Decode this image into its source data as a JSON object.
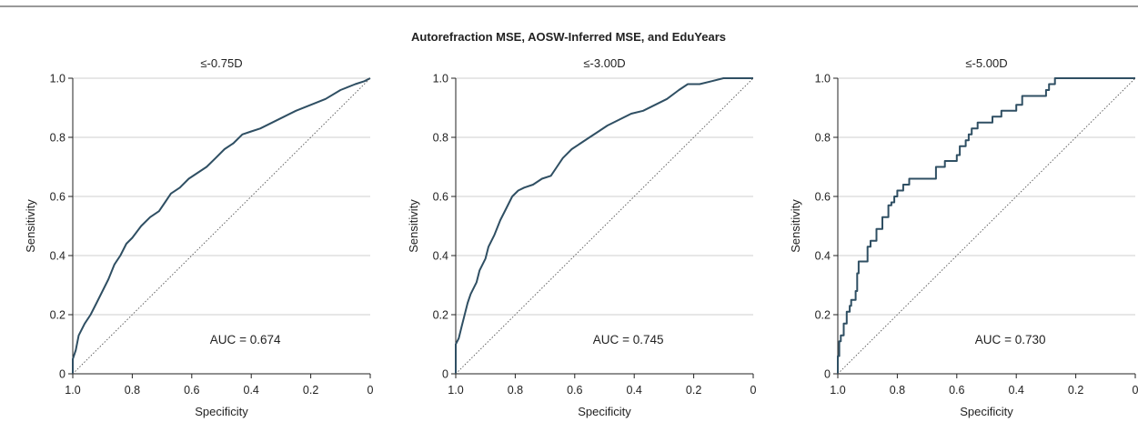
{
  "figure": {
    "title": "Autorefraction MSE, AOSW-Inferred MSE, and EduYears"
  },
  "colors": {
    "curve": "#2f4f63",
    "reference": "#555555",
    "grid": "#cfcfcf",
    "axis": "#222222",
    "top_rule": "#333333"
  },
  "chart_data": [
    {
      "type": "line",
      "subtitle": "≤-0.75D",
      "xlabel": "Specificity",
      "ylabel": "Sensitivity",
      "xlim": [
        1.0,
        0
      ],
      "ylim": [
        0,
        1.0
      ],
      "x_reversed": true,
      "xticks": [
        1.0,
        0.8,
        0.6,
        0.4,
        0.2,
        0
      ],
      "xtick_labels": [
        "1.0",
        "0.8",
        "0.6",
        "0.4",
        "0.2",
        "0"
      ],
      "yticks": [
        0,
        0.2,
        0.4,
        0.6,
        0.8,
        1.0
      ],
      "ytick_labels": [
        "0",
        "0.2",
        "0.4",
        "0.6",
        "0.8",
        "1.0"
      ],
      "grid": "horizontal",
      "annotation": {
        "label": "AUC",
        "value": "0.674"
      },
      "series": [
        {
          "step": false,
          "points": [
            [
              1.0,
              0
            ],
            [
              1.0,
              0.05
            ],
            [
              0.99,
              0.08
            ],
            [
              0.98,
              0.13
            ],
            [
              0.96,
              0.17
            ],
            [
              0.94,
              0.2
            ],
            [
              0.92,
              0.24
            ],
            [
              0.9,
              0.28
            ],
            [
              0.88,
              0.32
            ],
            [
              0.86,
              0.37
            ],
            [
              0.84,
              0.4
            ],
            [
              0.82,
              0.44
            ],
            [
              0.8,
              0.46
            ],
            [
              0.77,
              0.5
            ],
            [
              0.74,
              0.53
            ],
            [
              0.71,
              0.55
            ],
            [
              0.69,
              0.58
            ],
            [
              0.67,
              0.61
            ],
            [
              0.64,
              0.63
            ],
            [
              0.61,
              0.66
            ],
            [
              0.58,
              0.68
            ],
            [
              0.55,
              0.7
            ],
            [
              0.52,
              0.73
            ],
            [
              0.49,
              0.76
            ],
            [
              0.46,
              0.78
            ],
            [
              0.43,
              0.81
            ],
            [
              0.4,
              0.82
            ],
            [
              0.37,
              0.83
            ],
            [
              0.33,
              0.85
            ],
            [
              0.29,
              0.87
            ],
            [
              0.25,
              0.89
            ],
            [
              0.2,
              0.91
            ],
            [
              0.15,
              0.93
            ],
            [
              0.1,
              0.96
            ],
            [
              0.05,
              0.98
            ],
            [
              0.02,
              0.99
            ],
            [
              0,
              1.0
            ]
          ]
        },
        {
          "reference": true,
          "points": [
            [
              1.0,
              0
            ],
            [
              0,
              1.0
            ]
          ]
        }
      ]
    },
    {
      "type": "line",
      "subtitle": "≤-3.00D",
      "xlabel": "Specificity",
      "ylabel": "Sensitivity",
      "xlim": [
        1.0,
        0
      ],
      "ylim": [
        0,
        1.0
      ],
      "x_reversed": true,
      "xticks": [
        1.0,
        0.8,
        0.6,
        0.4,
        0.2,
        0
      ],
      "xtick_labels": [
        "1.0",
        "0.8",
        "0.6",
        "0.4",
        "0.2",
        "0"
      ],
      "yticks": [
        0,
        0.2,
        0.4,
        0.6,
        0.8,
        1.0
      ],
      "ytick_labels": [
        "0",
        "0.2",
        "0.4",
        "0.6",
        "0.8",
        "1.0"
      ],
      "grid": "horizontal",
      "annotation": {
        "label": "AUC",
        "value": "0.745"
      },
      "series": [
        {
          "step": false,
          "points": [
            [
              1.0,
              0
            ],
            [
              1.0,
              0.1
            ],
            [
              0.99,
              0.12
            ],
            [
              0.98,
              0.16
            ],
            [
              0.97,
              0.2
            ],
            [
              0.96,
              0.24
            ],
            [
              0.95,
              0.27
            ],
            [
              0.93,
              0.31
            ],
            [
              0.92,
              0.35
            ],
            [
              0.9,
              0.39
            ],
            [
              0.89,
              0.43
            ],
            [
              0.87,
              0.47
            ],
            [
              0.85,
              0.52
            ],
            [
              0.83,
              0.56
            ],
            [
              0.81,
              0.6
            ],
            [
              0.79,
              0.62
            ],
            [
              0.77,
              0.63
            ],
            [
              0.74,
              0.64
            ],
            [
              0.71,
              0.66
            ],
            [
              0.68,
              0.67
            ],
            [
              0.66,
              0.7
            ],
            [
              0.64,
              0.73
            ],
            [
              0.61,
              0.76
            ],
            [
              0.58,
              0.78
            ],
            [
              0.55,
              0.8
            ],
            [
              0.52,
              0.82
            ],
            [
              0.49,
              0.84
            ],
            [
              0.45,
              0.86
            ],
            [
              0.41,
              0.88
            ],
            [
              0.37,
              0.89
            ],
            [
              0.33,
              0.91
            ],
            [
              0.29,
              0.93
            ],
            [
              0.25,
              0.96
            ],
            [
              0.22,
              0.98
            ],
            [
              0.18,
              0.98
            ],
            [
              0.14,
              0.99
            ],
            [
              0.1,
              1.0
            ],
            [
              0,
              1.0
            ]
          ]
        },
        {
          "reference": true,
          "points": [
            [
              1.0,
              0
            ],
            [
              0,
              1.0
            ]
          ]
        }
      ]
    },
    {
      "type": "line",
      "subtitle": "≤-5.00D",
      "xlabel": "Specificity",
      "ylabel": "Sensitivity",
      "xlim": [
        1.0,
        0
      ],
      "ylim": [
        0,
        1.0
      ],
      "x_reversed": true,
      "xticks": [
        1.0,
        0.8,
        0.6,
        0.4,
        0.2,
        0
      ],
      "xtick_labels": [
        "1.0",
        "0.8",
        "0.6",
        "0.4",
        "0.2",
        "0"
      ],
      "yticks": [
        0,
        0.2,
        0.4,
        0.6,
        0.8,
        1.0
      ],
      "ytick_labels": [
        "0",
        "0.2",
        "0.4",
        "0.6",
        "0.8",
        "1.0"
      ],
      "grid": "horizontal",
      "annotation": {
        "label": "AUC",
        "value": "0.730"
      },
      "series": [
        {
          "step": true,
          "points": [
            [
              1.0,
              0
            ],
            [
              1.0,
              0.02
            ],
            [
              0.995,
              0.06
            ],
            [
              0.99,
              0.11
            ],
            [
              0.98,
              0.13
            ],
            [
              0.97,
              0.17
            ],
            [
              0.96,
              0.21
            ],
            [
              0.955,
              0.23
            ],
            [
              0.94,
              0.25
            ],
            [
              0.935,
              0.28
            ],
            [
              0.93,
              0.34
            ],
            [
              0.92,
              0.38
            ],
            [
              0.9,
              0.38
            ],
            [
              0.89,
              0.43
            ],
            [
              0.87,
              0.45
            ],
            [
              0.85,
              0.49
            ],
            [
              0.83,
              0.53
            ],
            [
              0.82,
              0.57
            ],
            [
              0.81,
              0.58
            ],
            [
              0.8,
              0.6
            ],
            [
              0.78,
              0.62
            ],
            [
              0.76,
              0.64
            ],
            [
              0.74,
              0.66
            ],
            [
              0.67,
              0.66
            ],
            [
              0.67,
              0.68
            ],
            [
              0.64,
              0.7
            ],
            [
              0.6,
              0.72
            ],
            [
              0.59,
              0.74
            ],
            [
              0.57,
              0.77
            ],
            [
              0.56,
              0.79
            ],
            [
              0.55,
              0.81
            ],
            [
              0.53,
              0.83
            ],
            [
              0.48,
              0.85
            ],
            [
              0.45,
              0.87
            ],
            [
              0.4,
              0.89
            ],
            [
              0.38,
              0.91
            ],
            [
              0.3,
              0.94
            ],
            [
              0.29,
              0.96
            ],
            [
              0.27,
              0.98
            ],
            [
              0.1,
              1.0
            ],
            [
              0,
              1.0
            ]
          ]
        },
        {
          "reference": true,
          "points": [
            [
              1.0,
              0
            ],
            [
              0,
              1.0
            ]
          ]
        }
      ]
    }
  ]
}
